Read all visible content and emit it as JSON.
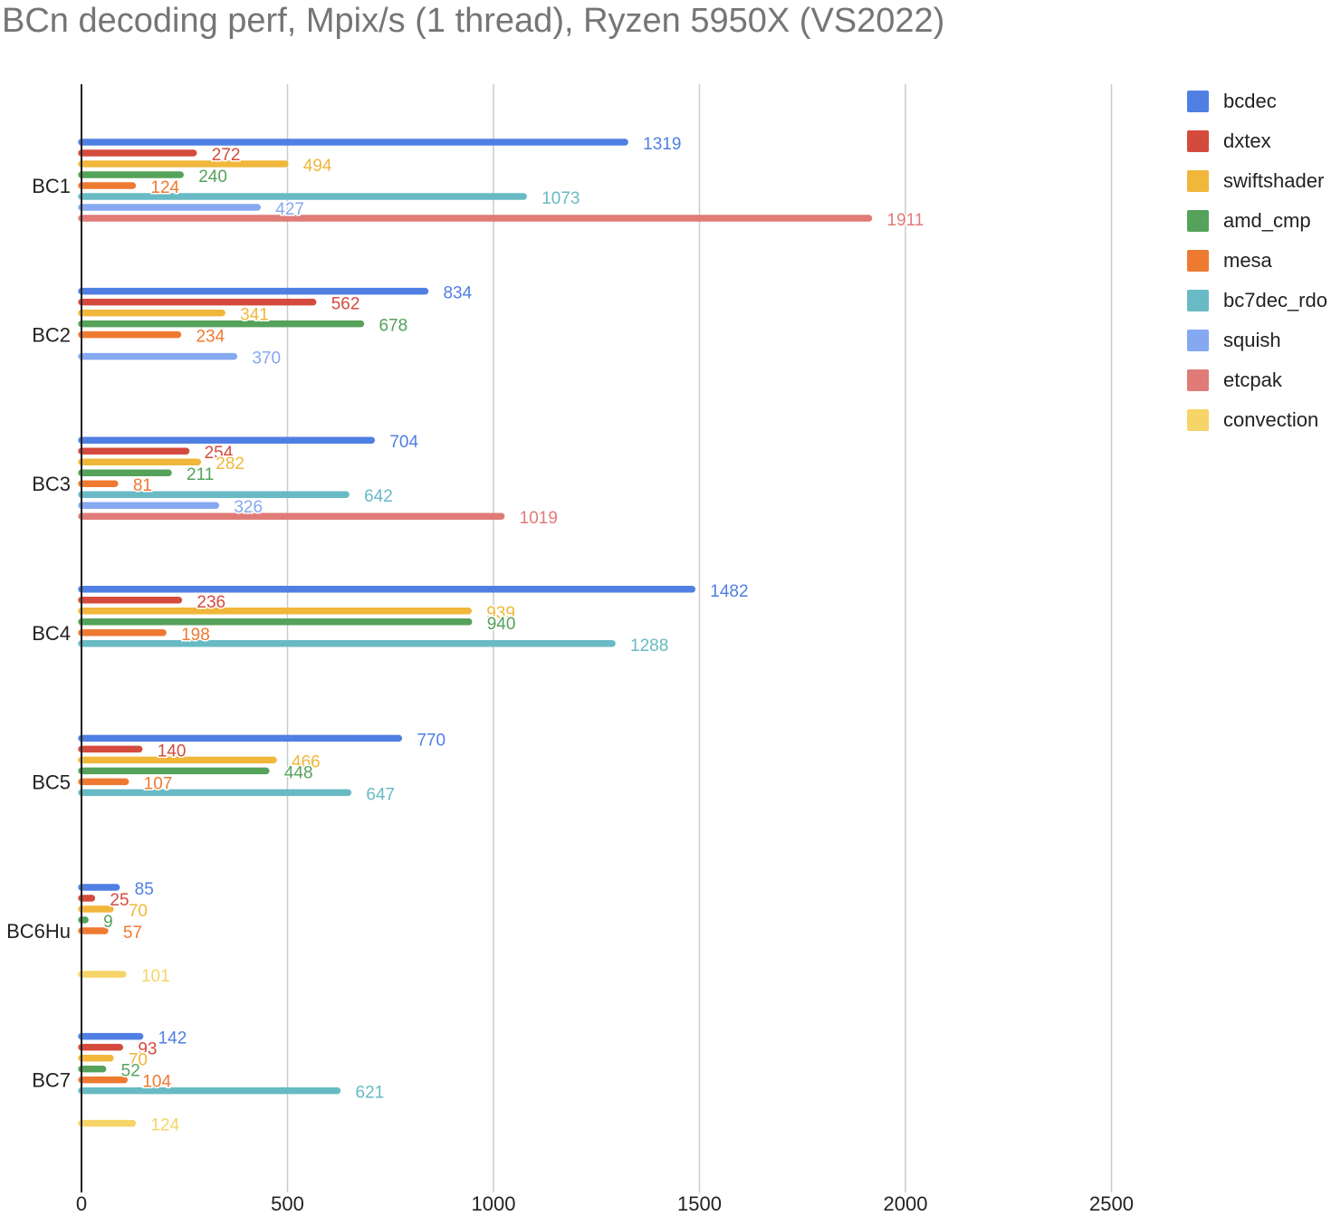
{
  "chart_data": {
    "type": "bar",
    "orientation": "horizontal",
    "title": "BCn decoding perf, Mpix/s (1 thread), Ryzen 5950X (VS2022)",
    "xlabel": "",
    "ylabel": "",
    "xlim": [
      0,
      2700
    ],
    "x_ticks": [
      0,
      500,
      1000,
      1500,
      2000,
      2500
    ],
    "grid": true,
    "legend": "right",
    "categories": [
      "BC1",
      "BC2",
      "BC3",
      "BC4",
      "BC5",
      "BC6Hu",
      "BC7"
    ],
    "series": [
      {
        "name": "bcdec",
        "color": "#4F7FE3",
        "values": [
          1319,
          834,
          704,
          1482,
          770,
          85,
          142
        ]
      },
      {
        "name": "dxtex",
        "color": "#D44B3E",
        "values": [
          272,
          562,
          254,
          236,
          140,
          25,
          93
        ]
      },
      {
        "name": "swiftshader",
        "color": "#F0B73B",
        "values": [
          494,
          341,
          282,
          939,
          466,
          70,
          70
        ]
      },
      {
        "name": "amd_cmp",
        "color": "#55A25A",
        "values": [
          240,
          678,
          211,
          940,
          448,
          9,
          52
        ]
      },
      {
        "name": "mesa",
        "color": "#EE7A32",
        "values": [
          124,
          234,
          81,
          198,
          107,
          57,
          104
        ]
      },
      {
        "name": "bc7dec_rdo",
        "color": "#68BAC4",
        "values": [
          1073,
          null,
          642,
          1288,
          647,
          null,
          621
        ]
      },
      {
        "name": "squish",
        "color": "#86A8F0",
        "values": [
          427,
          370,
          326,
          null,
          null,
          null,
          null
        ]
      },
      {
        "name": "etcpak",
        "color": "#E07B78",
        "values": [
          1911,
          null,
          1019,
          null,
          null,
          null,
          null
        ]
      },
      {
        "name": "convection",
        "color": "#F6D467",
        "values": [
          null,
          null,
          null,
          null,
          null,
          101,
          124
        ]
      }
    ]
  }
}
